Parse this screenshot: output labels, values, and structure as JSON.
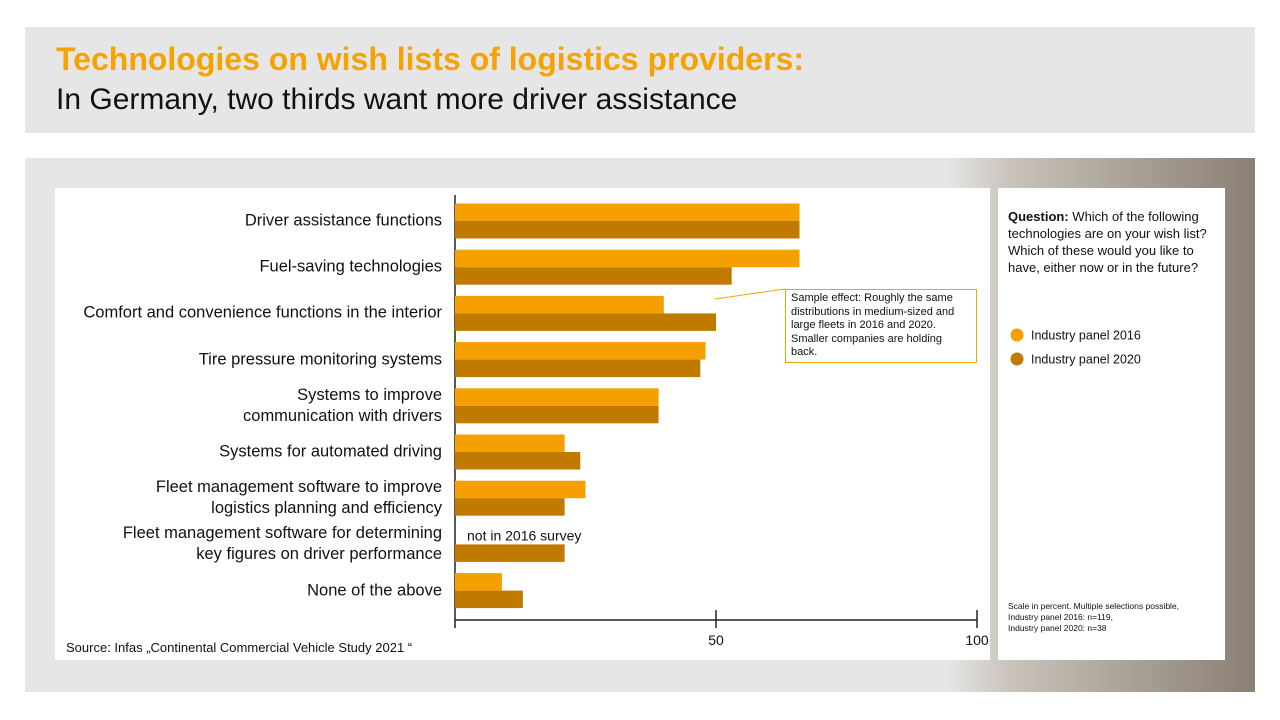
{
  "header": {
    "title": "Technologies on wish lists of logistics providers:",
    "subtitle": "In Germany, two thirds want more driver assistance"
  },
  "chart_data": {
    "type": "hbar",
    "categories": [
      "Driver assistance functions",
      "Fuel-saving technologies",
      "Comfort and convenience functions in the interior",
      "Tire pressure monitoring systems",
      "Systems to improve\ncommunication with drivers",
      "Systems for automated driving",
      "Fleet management software to improve\nlogistics planning and efficiency",
      "Fleet management software for determining\nkey figures on driver performance",
      "None of the above"
    ],
    "series": [
      {
        "name": "Industry panel 2016",
        "color": "#f5a000",
        "values": [
          66,
          66,
          40,
          48,
          39,
          21,
          25,
          null,
          9
        ]
      },
      {
        "name": "Industry panel 2020",
        "color": "#c07a00",
        "values": [
          66,
          53,
          50,
          47,
          39,
          24,
          21,
          21,
          13
        ]
      }
    ],
    "xlim": [
      0,
      100
    ],
    "xticks": [
      50,
      100
    ],
    "annotations": {
      "missing": "not in 2016 survey",
      "sample_effect": "Sample effect: Roughly the same distributions in medium-sized and large fleets in 2016 and 2020. Smaller companies are holding back."
    },
    "source": "Source: Infas „Continental Commercial Vehicle Study 2021 “"
  },
  "side_panel": {
    "question_label": "Question:",
    "question": "Which of the following technologies are on your wish list?\nWhich of these would you like to have, either now or in the future?",
    "note": "Scale in percent. Multiple selections possible,\nIndustry panel 2016: n=119,\nIndustry panel 2020: n=38"
  }
}
